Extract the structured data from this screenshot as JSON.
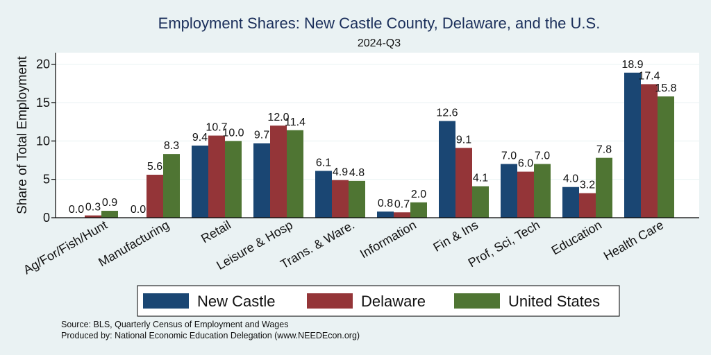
{
  "chart_data": {
    "type": "bar",
    "title": "Employment Shares: New Castle County, Delaware, and the U.S.",
    "subtitle": "2024-Q3",
    "ylabel": "Share of Total Employment",
    "xlabel": "",
    "ylim": [
      0,
      21.5
    ],
    "yticks": [
      0,
      5,
      10,
      15,
      20
    ],
    "grid": true,
    "legend_position": "bottom",
    "categories": [
      "Ag/For/Fish/Hunt",
      "Manufacturing",
      "Retail",
      "Leisure & Hosp",
      "Trans. & Ware.",
      "Information",
      "Fin & Ins",
      "Prof, Sci, Tech",
      "Education",
      "Health Care"
    ],
    "series": [
      {
        "name": "New Castle",
        "color": "#1a4673",
        "values": [
          0.0,
          0.0,
          9.4,
          9.7,
          6.1,
          0.8,
          12.6,
          7.0,
          4.0,
          18.9
        ],
        "labels": [
          "0.0",
          "0.0",
          "9.4",
          "9.7",
          "6.1",
          "0.8",
          "12.6",
          "7.0",
          "4.0",
          "18.9"
        ]
      },
      {
        "name": "Delaware",
        "color": "#943538",
        "values": [
          0.3,
          5.6,
          10.7,
          12.0,
          4.9,
          0.7,
          9.1,
          6.0,
          3.2,
          17.4
        ],
        "labels": [
          "0.3",
          "5.6",
          "10.7",
          "12.0",
          "4.9",
          "0.7",
          "9.1",
          "6.0",
          "3.2",
          "17.4"
        ]
      },
      {
        "name": "United States",
        "color": "#4f7533",
        "values": [
          0.9,
          8.3,
          10.0,
          11.4,
          4.8,
          2.0,
          4.1,
          7.0,
          7.8,
          15.8
        ],
        "labels": [
          "0.9",
          "8.3",
          "10.0",
          "11.4",
          "4.8",
          "2.0",
          "4.1",
          "7.0",
          "7.8",
          "15.8"
        ]
      }
    ],
    "notes": [
      "Source: BLS, Quarterly Census of Employment and Wages",
      "Produced by: National Economic Education Delegation (www.NEEDEcon.org)"
    ]
  }
}
